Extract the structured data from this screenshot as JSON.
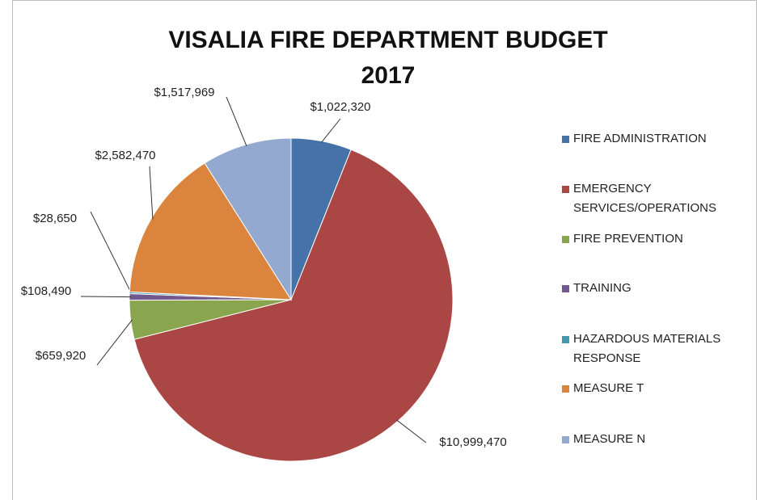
{
  "chart_data": {
    "type": "pie",
    "title": "VISALIA FIRE DEPARTMENT BUDGET 2017",
    "categories": [
      "FIRE ADMINISTRATION",
      "EMERGENCY SERVICES/OPERATIONS",
      "FIRE PREVENTION",
      "TRAINING",
      "HAZARDOUS MATERIALS RESPONSE",
      "MEASURE T",
      "MEASURE N"
    ],
    "values": [
      1022320,
      10999470,
      659920,
      108490,
      28650,
      2582470,
      1517969
    ],
    "value_labels": [
      "$1,022,320",
      "$10,999,470",
      "$659,920",
      "$108,490",
      "$28,650",
      "$2,582,470",
      "$1,517,969"
    ],
    "colors": [
      "#4672aa",
      "#aa4643",
      "#89a54e",
      "#71588f",
      "#4198af",
      "#db843d",
      "#93a9cf"
    ],
    "legend": "right"
  }
}
